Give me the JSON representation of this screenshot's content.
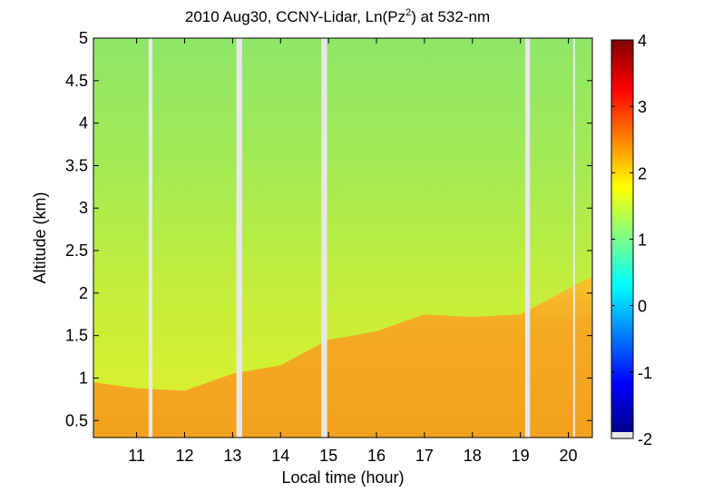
{
  "chart_data": {
    "type": "heatmap",
    "title_main": "2010 Aug30, CCNY-Lidar, Ln(Pz",
    "title_sup": "2",
    "title_end": ") at 532-nm",
    "xlabel": "Local time (hour)",
    "ylabel": "Altitude (km)",
    "xlim": [
      10.1,
      20.5
    ],
    "ylim": [
      0.3,
      5.0
    ],
    "xticks": [
      "11",
      "12",
      "13",
      "14",
      "15",
      "16",
      "17",
      "18",
      "19",
      "20"
    ],
    "yticks": [
      "0.5",
      "1",
      "1.5",
      "2",
      "2.5",
      "3",
      "3.5",
      "4",
      "4.5",
      "5"
    ],
    "colorbar": {
      "range": [
        -2,
        4
      ],
      "ticks": [
        "-2",
        "-1",
        "0",
        "1",
        "2",
        "3",
        "4"
      ],
      "colormap": "jet"
    },
    "data_gaps_hours": [
      [
        11.25,
        11.33
      ],
      [
        13.08,
        13.2
      ],
      [
        14.85,
        14.97
      ],
      [
        19.1,
        19.2
      ],
      [
        20.1,
        20.13
      ]
    ],
    "boundary_layer_top_km": [
      {
        "hour": 10.1,
        "value": 0.95
      },
      {
        "hour": 11.0,
        "value": 0.88
      },
      {
        "hour": 12.0,
        "value": 0.85
      },
      {
        "hour": 13.0,
        "value": 1.05
      },
      {
        "hour": 14.0,
        "value": 1.15
      },
      {
        "hour": 15.0,
        "value": 1.45
      },
      {
        "hour": 16.0,
        "value": 1.55
      },
      {
        "hour": 17.0,
        "value": 1.75
      },
      {
        "hour": 18.0,
        "value": 1.72
      },
      {
        "hour": 19.0,
        "value": 1.75
      },
      {
        "hour": 20.0,
        "value": 2.05
      },
      {
        "hour": 20.5,
        "value": 2.2
      }
    ],
    "value_levels": {
      "boundary_layer": 2.5,
      "lower_free_troposphere": 1.9,
      "upper_free_troposphere": 1.4
    }
  }
}
